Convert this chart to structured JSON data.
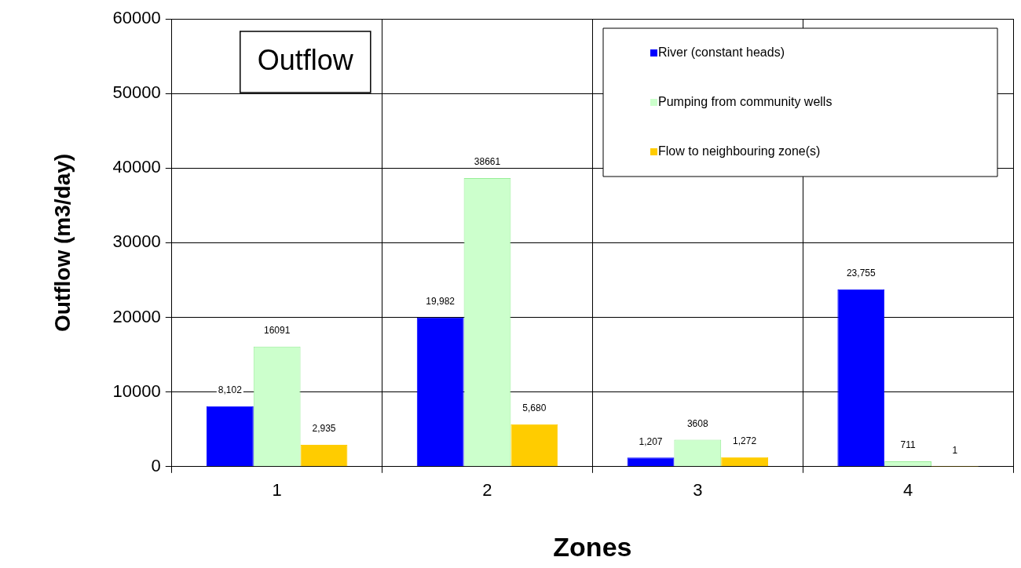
{
  "chart_data": {
    "type": "bar",
    "title": "Outflow",
    "xlabel": "Zones",
    "ylabel": "Outflow (m3/day)",
    "categories": [
      "1",
      "2",
      "3",
      "4"
    ],
    "series": [
      {
        "name": "River (constant heads)",
        "color": "#0000ff",
        "values": [
          8102,
          19982,
          1207,
          23755
        ],
        "value_labels": [
          "8,102",
          "19,982",
          "1,207",
          "23,755"
        ]
      },
      {
        "name": "Pumping from community wells",
        "color": "#ccffcc",
        "values": [
          16091,
          38661,
          3608,
          711
        ],
        "value_labels": [
          "16091",
          "38661",
          "3608",
          "711"
        ]
      },
      {
        "name": "Flow to neighbouring zone(s)",
        "color": "#ffcc00",
        "values": [
          2935,
          5680,
          1272,
          1
        ],
        "value_labels": [
          "2,935",
          "5,680",
          "1,272",
          "1"
        ]
      }
    ],
    "ylim": [
      0,
      60000
    ],
    "yticks": [
      0,
      10000,
      20000,
      30000,
      40000,
      50000,
      60000
    ],
    "grid": true,
    "legend": "top right"
  }
}
